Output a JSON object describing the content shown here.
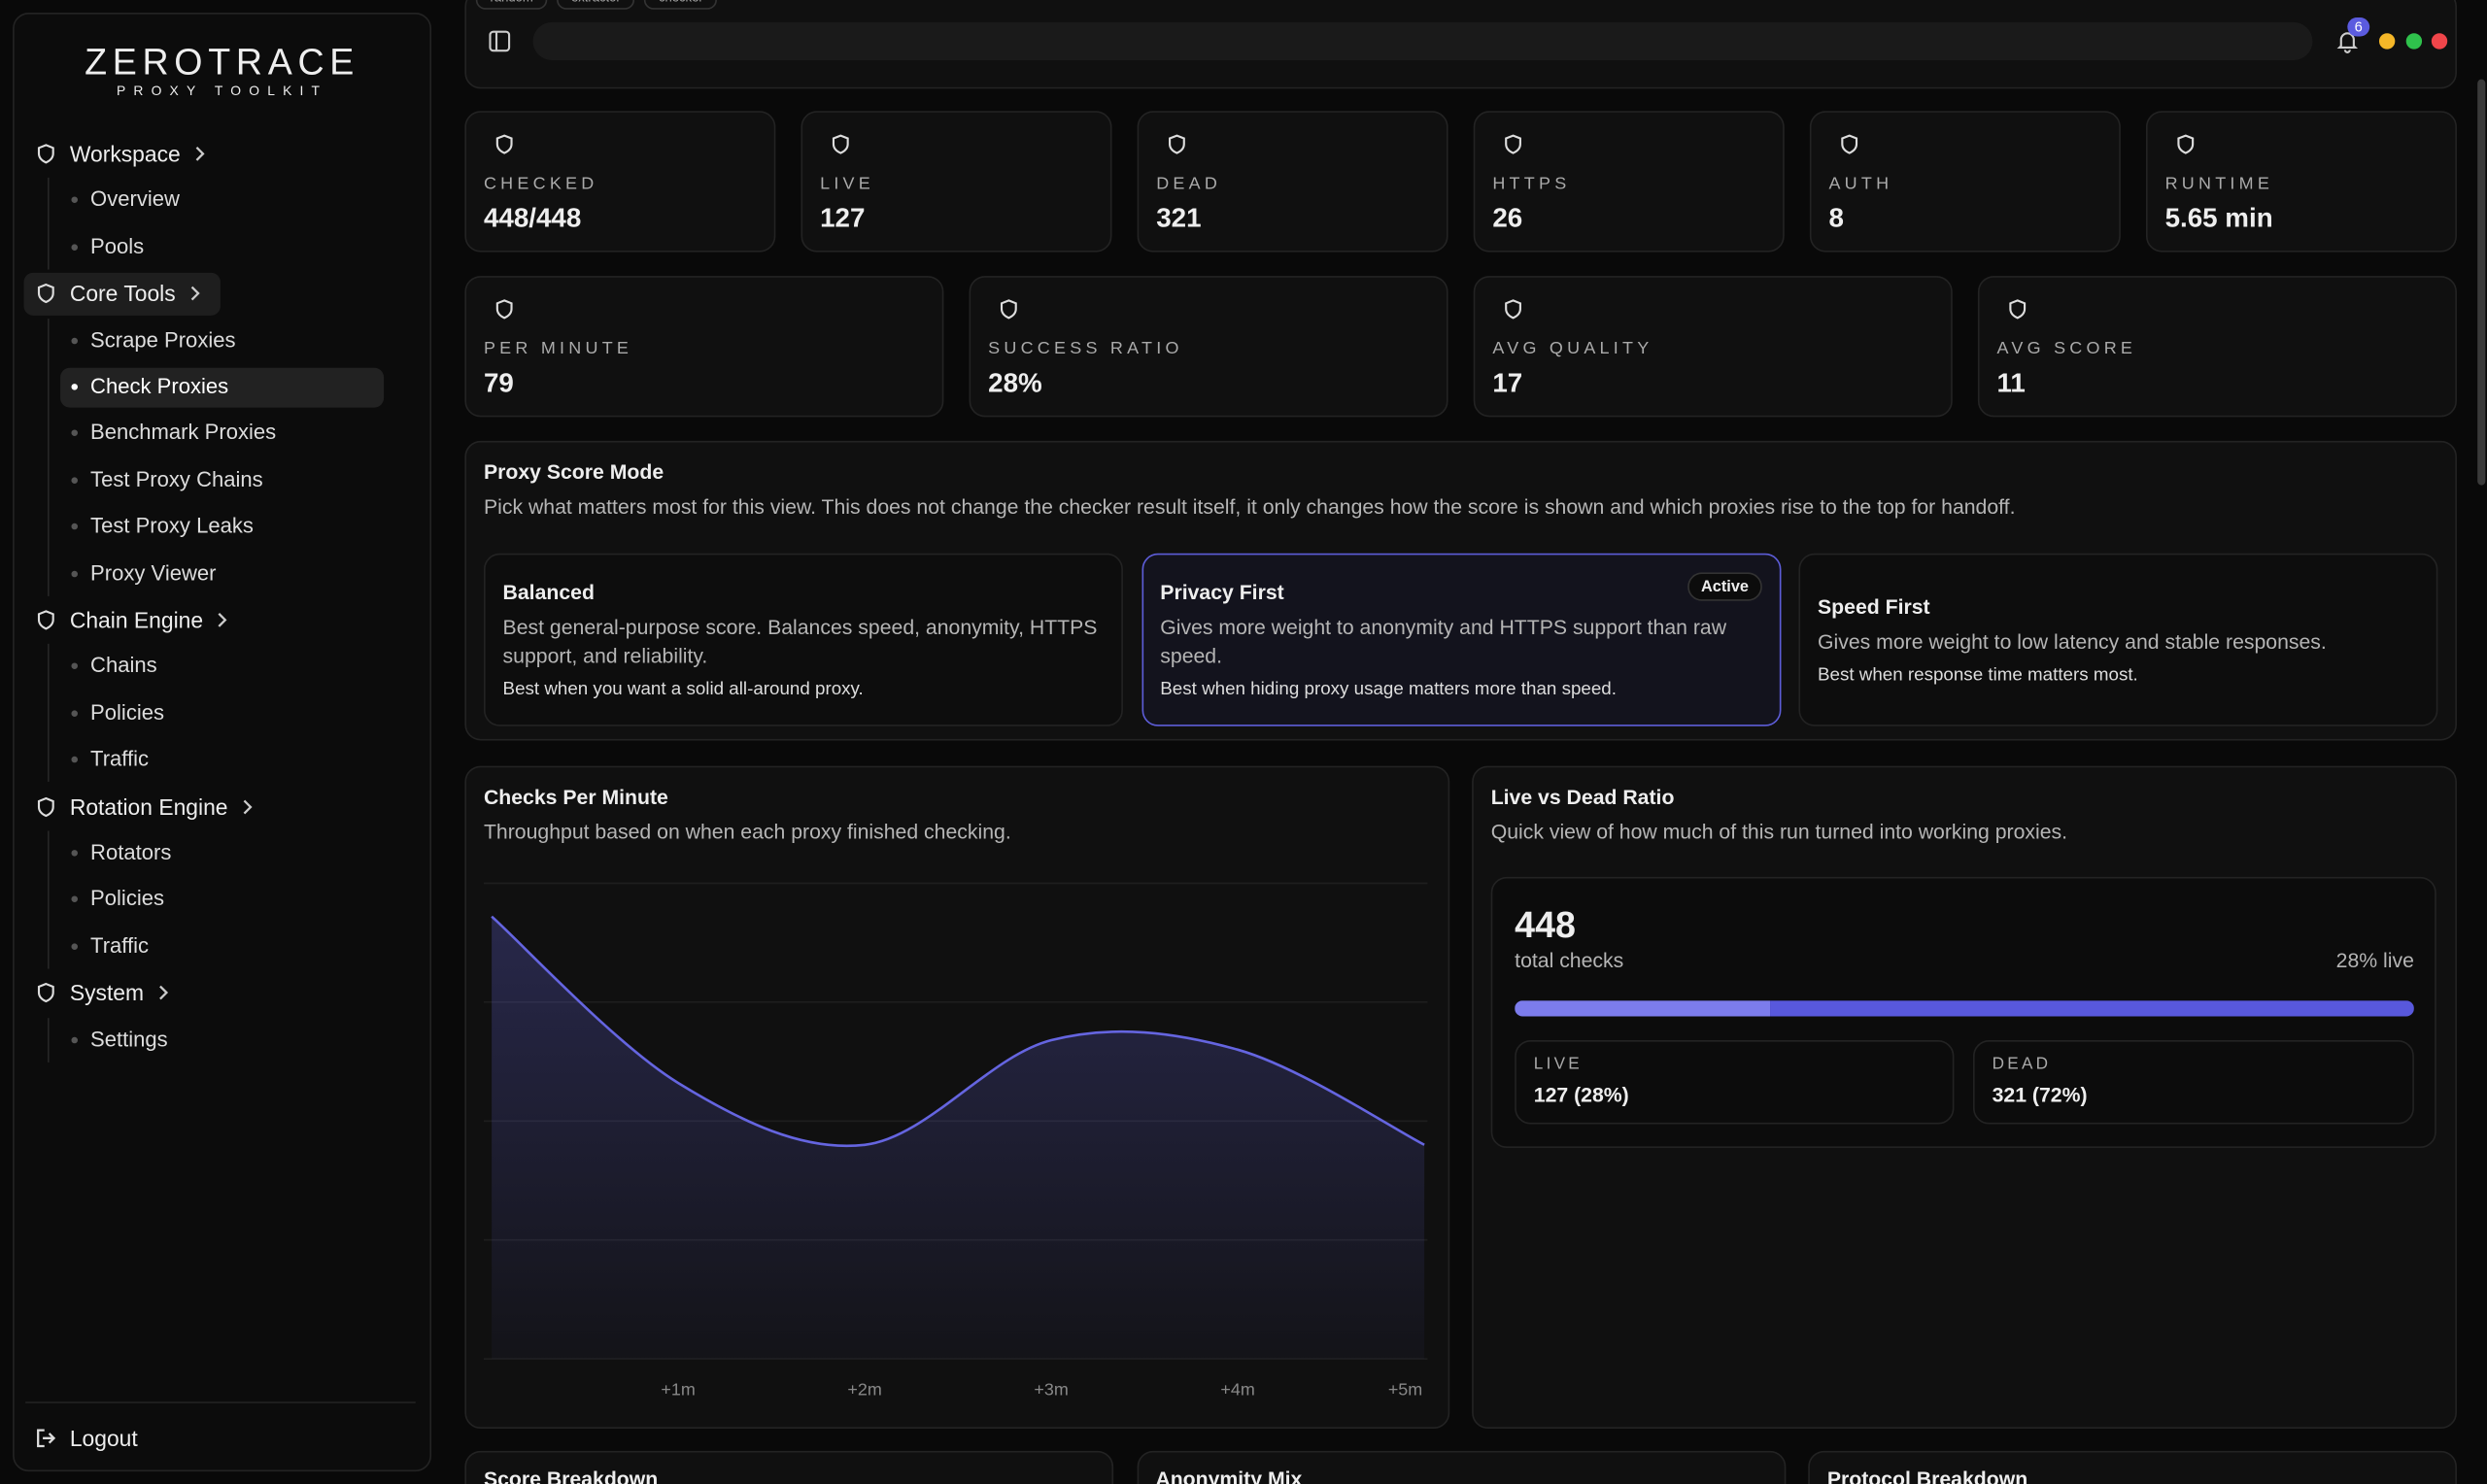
{
  "sidebar": {
    "brand": "ZEROTRACE",
    "tagline": "PROXY TOOLKIT",
    "groups": [
      {
        "label": "Workspace",
        "items": [
          {
            "label": "Overview"
          },
          {
            "label": "Pools"
          }
        ]
      },
      {
        "label": "Core Tools",
        "active": true,
        "items": [
          {
            "label": "Scrape Proxies"
          },
          {
            "label": "Check Proxies",
            "active": true
          },
          {
            "label": "Benchmark Proxies"
          },
          {
            "label": "Test Proxy Chains"
          },
          {
            "label": "Test Proxy Leaks"
          },
          {
            "label": "Proxy Viewer"
          }
        ]
      },
      {
        "label": "Chain Engine",
        "items": [
          {
            "label": "Chains"
          },
          {
            "label": "Policies"
          },
          {
            "label": "Traffic"
          }
        ]
      },
      {
        "label": "Rotation Engine",
        "items": [
          {
            "label": "Rotators"
          },
          {
            "label": "Policies"
          },
          {
            "label": "Traffic"
          }
        ]
      },
      {
        "label": "System",
        "items": [
          {
            "label": "Settings"
          }
        ]
      }
    ],
    "logout": "Logout"
  },
  "topbar": {
    "tabs": [
      "random",
      "extractor",
      "checker"
    ],
    "notifications": 6
  },
  "stats": [
    {
      "label": "CHECKED",
      "value": "448/448"
    },
    {
      "label": "LIVE",
      "value": "127"
    },
    {
      "label": "DEAD",
      "value": "321"
    },
    {
      "label": "HTTPS",
      "value": "26"
    },
    {
      "label": "AUTH",
      "value": "8"
    },
    {
      "label": "RUNTIME",
      "value": "5.65 min"
    }
  ],
  "stats2": [
    {
      "label": "PER MINUTE",
      "value": "79"
    },
    {
      "label": "SUCCESS RATIO",
      "value": "28%"
    },
    {
      "label": "AVG QUALITY",
      "value": "17"
    },
    {
      "label": "AVG SCORE",
      "value": "11"
    }
  ],
  "score_mode": {
    "title": "Proxy Score Mode",
    "description": "Pick what matters most for this view. This does not change the checker result itself, it only changes how the score is shown and which proxies rise to the top for handoff.",
    "modes": [
      {
        "name": "Balanced",
        "description": "Best general-purpose score. Balances speed, anonymity, HTTPS support, and reliability.",
        "note": "Best when you want a solid all-around proxy."
      },
      {
        "name": "Privacy First",
        "description": "Gives more weight to anonymity and HTTPS support than raw speed.",
        "note": "Best when hiding proxy usage matters more than speed.",
        "active": true,
        "badge": "Active"
      },
      {
        "name": "Speed First",
        "description": "Gives more weight to low latency and stable responses.",
        "note": "Best when response time matters most."
      }
    ]
  },
  "chart_data": {
    "type": "area",
    "title": "Checks Per Minute",
    "subtitle": "Throughput based on when each proxy finished checking.",
    "x": [
      0,
      1,
      2,
      3,
      4,
      5
    ],
    "values": [
      93,
      58,
      45,
      67,
      65,
      45
    ],
    "xlim": [
      0,
      5
    ],
    "ylim": [
      0,
      100
    ],
    "xticks": [
      {
        "value": 1,
        "label": "+1m"
      },
      {
        "value": 2,
        "label": "+2m"
      },
      {
        "value": 3,
        "label": "+3m"
      },
      {
        "value": 4,
        "label": "+4m"
      },
      {
        "value": 5,
        "label": "+5m"
      }
    ],
    "color": "#6565e0"
  },
  "ratio": {
    "title": "Live vs Dead Ratio",
    "subtitle": "Quick view of how much of this run turned into working proxies.",
    "total": "448",
    "total_label": "total checks",
    "live_pct_label": "28% live",
    "live": 127,
    "dead": 321,
    "live_label": "LIVE",
    "live_value_label": "127 (28%)",
    "dead_label": "DEAD",
    "dead_value_label": "321 (72%)"
  },
  "bottom_cards": [
    "Score Breakdown",
    "Anonymity Mix",
    "Protocol Breakdown"
  ]
}
